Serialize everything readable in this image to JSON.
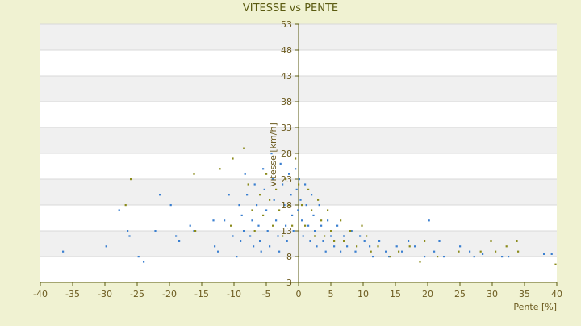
{
  "chart_data": {
    "type": "scatter",
    "title": "VITESSE vs PENTE",
    "xlabel": "Pente [%]",
    "ylabel": "Vitesse [km/h]",
    "xlim": [
      -40,
      40
    ],
    "ylim": [
      3,
      53
    ],
    "x_ticks": [
      -40,
      -35,
      -30,
      -25,
      -20,
      -15,
      -10,
      -5,
      0,
      5,
      10,
      15,
      20,
      25,
      30,
      35,
      40
    ],
    "y_ticks": [
      3,
      8,
      13,
      18,
      23,
      28,
      33,
      38,
      43,
      48,
      53
    ],
    "grid": "horizontal bands",
    "legend": "none",
    "series": [
      {
        "color": "#3a7fd0",
        "points": [
          [
            -36.5,
            9
          ],
          [
            -29.8,
            10
          ],
          [
            -27.8,
            17
          ],
          [
            -26.5,
            13
          ],
          [
            -26.2,
            12
          ],
          [
            -24.8,
            8
          ],
          [
            -24,
            7
          ],
          [
            -22.2,
            13
          ],
          [
            -21.5,
            20
          ],
          [
            -19.8,
            18
          ],
          [
            -19,
            12
          ],
          [
            -18.5,
            11
          ],
          [
            -16.8,
            14
          ],
          [
            -16.2,
            13
          ],
          [
            -13.2,
            15
          ],
          [
            -13,
            10
          ],
          [
            -12.5,
            9
          ],
          [
            -11.5,
            15
          ],
          [
            -10.8,
            20
          ],
          [
            -10.2,
            12
          ],
          [
            -9.6,
            8
          ],
          [
            -9.2,
            18
          ],
          [
            -9.0,
            11
          ],
          [
            -8.8,
            16
          ],
          [
            -8.5,
            13
          ],
          [
            -8.3,
            24
          ],
          [
            -8,
            20
          ],
          [
            -7.5,
            12
          ],
          [
            -7.2,
            15
          ],
          [
            -7,
            10
          ],
          [
            -6.8,
            22
          ],
          [
            -6.5,
            18
          ],
          [
            -6.2,
            14
          ],
          [
            -6,
            11
          ],
          [
            -5.8,
            9
          ],
          [
            -5.5,
            25
          ],
          [
            -5.3,
            21
          ],
          [
            -5,
            17
          ],
          [
            -4.8,
            13
          ],
          [
            -4.5,
            10
          ],
          [
            -4.2,
            28
          ],
          [
            -4,
            23
          ],
          [
            -3.8,
            19
          ],
          [
            -3.5,
            15
          ],
          [
            -3.2,
            12
          ],
          [
            -3,
            9
          ],
          [
            -2.8,
            26
          ],
          [
            -2.5,
            22
          ],
          [
            -2.2,
            18
          ],
          [
            -2,
            14
          ],
          [
            -1.8,
            11
          ],
          [
            -1.5,
            24
          ],
          [
            -1.2,
            20
          ],
          [
            -1,
            16
          ],
          [
            -0.8,
            13
          ],
          [
            -0.5,
            25
          ],
          [
            -0.3,
            21
          ],
          [
            -0.1,
            17
          ],
          [
            0.1,
            23
          ],
          [
            0.3,
            19
          ],
          [
            0.5,
            15
          ],
          [
            0.7,
            12
          ],
          [
            1,
            22
          ],
          [
            1.2,
            18
          ],
          [
            1.5,
            14
          ],
          [
            1.8,
            11
          ],
          [
            2,
            20
          ],
          [
            2.3,
            16
          ],
          [
            2.5,
            13
          ],
          [
            2.8,
            10
          ],
          [
            3.2,
            18
          ],
          [
            3.5,
            14
          ],
          [
            3.8,
            11
          ],
          [
            4.2,
            9
          ],
          [
            4.5,
            15
          ],
          [
            5,
            12
          ],
          [
            5.5,
            10
          ],
          [
            6,
            14
          ],
          [
            6.5,
            9
          ],
          [
            7,
            12
          ],
          [
            7.5,
            10
          ],
          [
            8.2,
            13
          ],
          [
            8.8,
            9
          ],
          [
            9.5,
            12
          ],
          [
            10.2,
            11
          ],
          [
            11,
            10
          ],
          [
            11.5,
            8
          ],
          [
            12.5,
            11
          ],
          [
            13.5,
            9
          ],
          [
            14,
            8
          ],
          [
            15.2,
            10
          ],
          [
            16,
            9
          ],
          [
            17,
            11
          ],
          [
            18,
            10
          ],
          [
            19.5,
            8
          ],
          [
            20.2,
            15
          ],
          [
            21,
            9
          ],
          [
            21.8,
            11
          ],
          [
            22.5,
            8
          ],
          [
            25,
            10
          ],
          [
            26.5,
            9
          ],
          [
            27.2,
            8
          ],
          [
            28.5,
            8.5
          ],
          [
            31.5,
            8
          ],
          [
            32.5,
            8
          ],
          [
            38,
            8.5
          ],
          [
            39.2,
            8.5
          ]
        ]
      },
      {
        "color": "#8a8a1a",
        "points": [
          [
            -26.8,
            18
          ],
          [
            -26,
            23
          ],
          [
            -16.2,
            24
          ],
          [
            -16,
            13
          ],
          [
            -12.2,
            25
          ],
          [
            -10.5,
            14
          ],
          [
            -10.2,
            27
          ],
          [
            -8.5,
            29
          ],
          [
            -7.8,
            22
          ],
          [
            -7.2,
            17
          ],
          [
            -6.8,
            13
          ],
          [
            -6,
            20
          ],
          [
            -5.5,
            16
          ],
          [
            -5,
            24
          ],
          [
            -4.5,
            19
          ],
          [
            -4,
            14
          ],
          [
            -3.5,
            21
          ],
          [
            -3,
            17
          ],
          [
            -2.5,
            12
          ],
          [
            -2,
            23
          ],
          [
            -1.5,
            18
          ],
          [
            -1,
            14
          ],
          [
            -0.5,
            27
          ],
          [
            0,
            22
          ],
          [
            0.5,
            18
          ],
          [
            1,
            14
          ],
          [
            1.5,
            21
          ],
          [
            2,
            17
          ],
          [
            2.5,
            12
          ],
          [
            3,
            19
          ],
          [
            3.5,
            15
          ],
          [
            4,
            12
          ],
          [
            4.5,
            17
          ],
          [
            5,
            13
          ],
          [
            5.5,
            11
          ],
          [
            6.5,
            15
          ],
          [
            7,
            11
          ],
          [
            8,
            13
          ],
          [
            9,
            10
          ],
          [
            9.8,
            14
          ],
          [
            10.5,
            12
          ],
          [
            11.2,
            9
          ],
          [
            12.3,
            10
          ],
          [
            14.2,
            8
          ],
          [
            15.5,
            9
          ],
          [
            17.2,
            10
          ],
          [
            18.8,
            7
          ],
          [
            19.5,
            11
          ],
          [
            21.5,
            8
          ],
          [
            24.8,
            9
          ],
          [
            28.2,
            9
          ],
          [
            29.8,
            11
          ],
          [
            30.5,
            9
          ],
          [
            32.2,
            10
          ],
          [
            33.8,
            11
          ],
          [
            34,
            9
          ],
          [
            39.8,
            6.5
          ]
        ]
      }
    ]
  }
}
